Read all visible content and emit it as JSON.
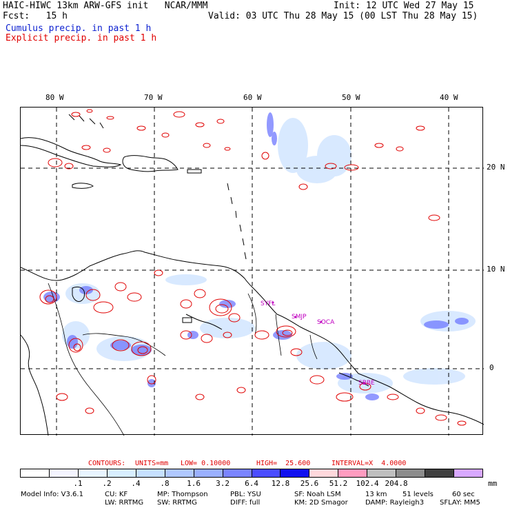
{
  "header": {
    "left_line1": "HAIC-HIWC 13km ARW-GFS init   NCAR/MMM",
    "left_line2": "Fcst:   15 h",
    "right_line1": "Init: 12 UTC Wed 27 May 15",
    "right_line2": "Valid: 03 UTC Thu 28 May 15 (00 LST Thu 28 May 15)",
    "cumulus_label": "Cumulus precip. in past 1 h",
    "explicit_label": "Explicit precip. in past 1 h"
  },
  "map": {
    "lon_labels": [
      "80 W",
      "70 W",
      "60 W",
      "50 W",
      "40 W"
    ],
    "lat_labels": [
      "20 N",
      "10 N",
      "0"
    ],
    "station_labels": [
      "SYFL",
      "SMJP",
      "SOCA",
      "SBBE"
    ],
    "colors": {
      "coast": "#000000",
      "explicit_contour": "#e00000",
      "grid": "#000000",
      "station": "#c000c0"
    }
  },
  "contours": {
    "title": "CONTOURS:",
    "units": "UNITS=mm",
    "low": "LOW= 0.10000",
    "high": "HIGH=  25.600",
    "interval": "INTERVAL=X  4.0000"
  },
  "legend": {
    "colors": [
      "#ffffff",
      "#f4f4ff",
      "#e8f4ff",
      "#d8eeff",
      "#c6e0ff",
      "#b0c8ff",
      "#9ab0ff",
      "#7a84ff",
      "#4a4cff",
      "#1010f0",
      "#ffd8dc",
      "#ff9cc0",
      "#bfbfbf",
      "#8c8c8c",
      "#404040",
      "#d8a8ff"
    ],
    "ticks": [
      ".1",
      ".2",
      ".4",
      ".8",
      "1.6",
      "3.2",
      "6.4",
      "12.8",
      "25.6",
      "51.2",
      "102.4",
      "204.8"
    ],
    "unit": "mm"
  },
  "model_info": {
    "line1": [
      "Model Info: V3.6.1",
      "CU: KF",
      "MP: Thompson",
      "PBL: YSU",
      "SF: Noah LSM",
      "13 km",
      "51 levels",
      "60 sec"
    ],
    "line2": [
      "LW: RRTMG",
      "SW: RRTMG",
      "DIFF: full",
      "KM: 2D Smagor",
      "DAMP: Rayleigh3",
      "SFLAY: MM5"
    ]
  }
}
